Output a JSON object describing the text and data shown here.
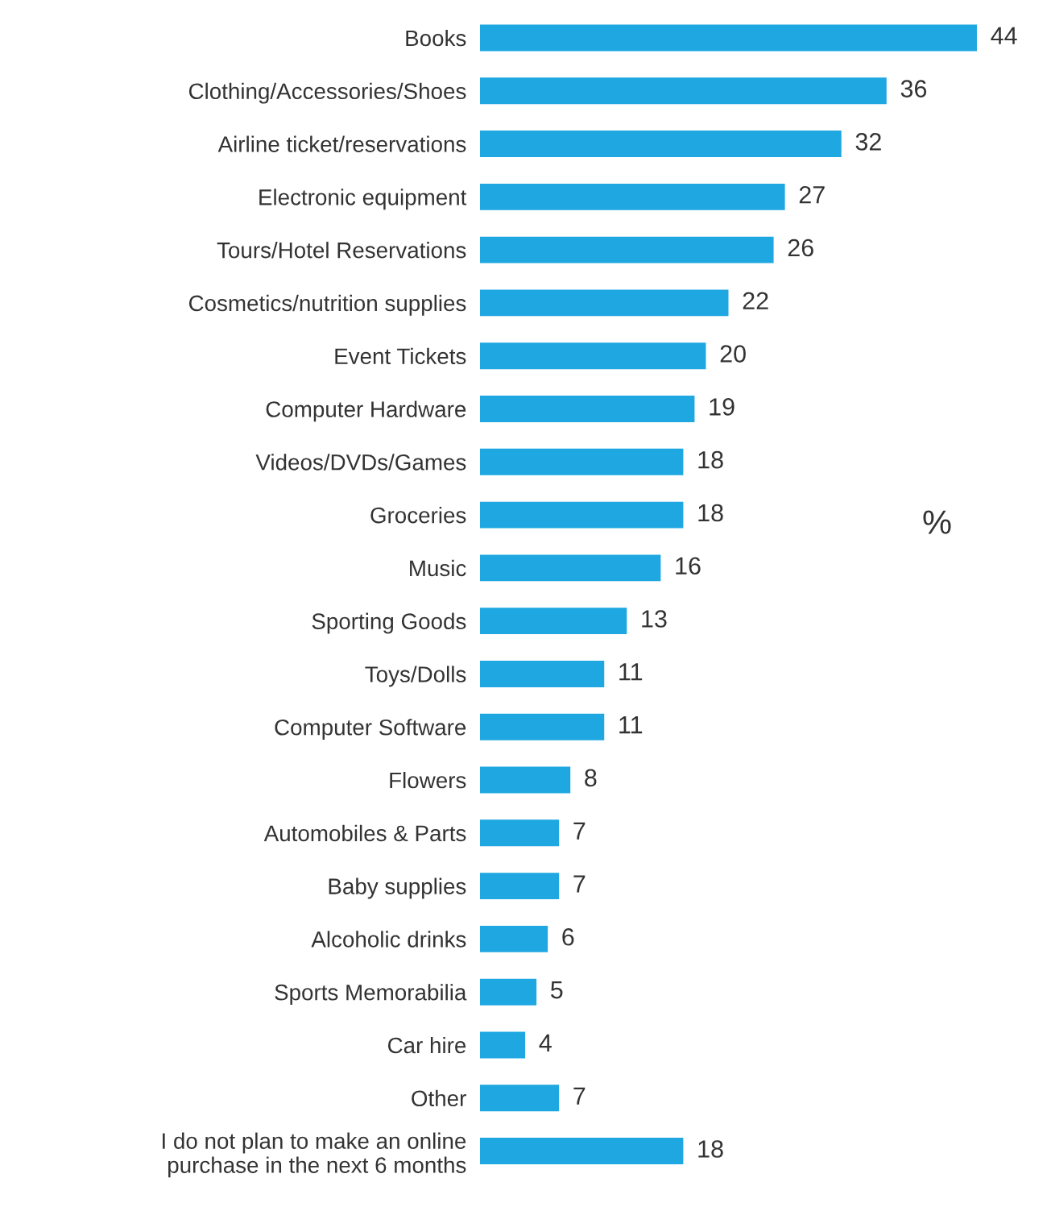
{
  "chart_data": {
    "type": "bar",
    "orientation": "horizontal",
    "data_labels": true,
    "grid": false,
    "legend": false,
    "tick_labels": "y",
    "categories": [
      "Books",
      "Clothing/Accessories/Shoes",
      "Airline ticket/reservations",
      "Electronic equipment",
      "Tours/Hotel Reservations",
      "Cosmetics/nutrition supplies",
      "Event Tickets",
      "Computer Hardware",
      "Videos/DVDs/Games",
      "Groceries",
      "Music",
      "Sporting Goods",
      "Toys/Dolls",
      "Computer Software",
      "Flowers",
      "Automobiles & Parts",
      "Baby supplies",
      "Alcoholic drinks",
      "Sports Memorabilia",
      "Car hire",
      "Other",
      "I do not plan to make an online\npurchase in the next 6 months"
    ],
    "values": [
      44,
      36,
      32,
      27,
      26,
      22,
      20,
      19,
      18,
      18,
      16,
      13,
      11,
      11,
      8,
      7,
      7,
      6,
      5,
      4,
      7,
      18
    ],
    "color": "#1ea7e1",
    "annotations": [
      "%"
    ]
  }
}
